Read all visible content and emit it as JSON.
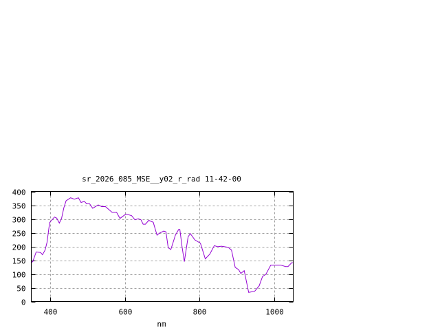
{
  "chart_data": {
    "type": "line",
    "title": "sr_2026_085_MSE__y02_r_rad 11-42-00",
    "xlabel": "nm",
    "ylabel": "",
    "xlim": [
      350,
      1050
    ],
    "ylim": [
      0,
      400
    ],
    "xticks": [
      400,
      600,
      800,
      1000
    ],
    "yticks": [
      0,
      50,
      100,
      150,
      200,
      250,
      300,
      350,
      400
    ],
    "grid": true,
    "line_color": "#9400d3",
    "series": [
      {
        "x": [
          350,
          354,
          363,
          375,
          380,
          387,
          392,
          399,
          412,
          418,
          425,
          431,
          437,
          443,
          455,
          465,
          476,
          483,
          492,
          498,
          506,
          514,
          529,
          538,
          548,
          566,
          578,
          587,
          603,
          618,
          627,
          636,
          643,
          649,
          655,
          664,
          676,
          686,
          692,
          704,
          710,
          716,
          723,
          735,
          744,
          747,
          753,
          759,
          769,
          775,
          787,
          802,
          815,
          827,
          839,
          848,
          858,
          876,
          885,
          895,
          904,
          910,
          919,
          931,
          947,
          959,
          968,
          977,
          990,
          1005,
          1017,
          1030,
          1036,
          1046,
          1050
        ],
        "y": [
          142,
          145,
          180,
          178,
          170,
          187,
          215,
          287,
          307,
          303,
          285,
          303,
          341,
          366,
          377,
          372,
          377,
          360,
          364,
          355,
          355,
          339,
          351,
          345,
          345,
          324,
          324,
          302,
          318,
          312,
          297,
          301,
          297,
          281,
          281,
          295,
          288,
          241,
          248,
          256,
          253,
          195,
          189,
          241,
          262,
          262,
          199,
          145,
          235,
          247,
          224,
          212,
          155,
          172,
          203,
          199,
          201,
          197,
          187,
          124,
          116,
          102,
          112,
          33,
          37,
          57,
          91,
          99,
          132,
          132,
          132,
          127,
          127,
          141,
          141
        ]
      }
    ]
  }
}
